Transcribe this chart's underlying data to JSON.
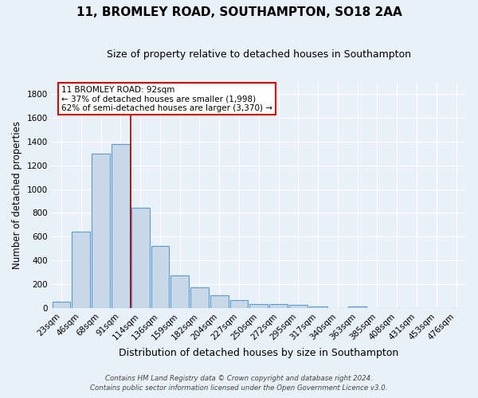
{
  "title": "11, BROMLEY ROAD, SOUTHAMPTON, SO18 2AA",
  "subtitle": "Size of property relative to detached houses in Southampton",
  "xlabel": "Distribution of detached houses by size in Southampton",
  "ylabel": "Number of detached properties",
  "footnote1": "Contains HM Land Registry data © Crown copyright and database right 2024.",
  "footnote2": "Contains public sector information licensed under the Open Government Licence v3.0.",
  "bar_labels": [
    "23sqm",
    "46sqm",
    "68sqm",
    "91sqm",
    "114sqm",
    "136sqm",
    "159sqm",
    "182sqm",
    "204sqm",
    "227sqm",
    "250sqm",
    "272sqm",
    "295sqm",
    "317sqm",
    "340sqm",
    "363sqm",
    "385sqm",
    "408sqm",
    "431sqm",
    "453sqm",
    "476sqm"
  ],
  "bar_values": [
    55,
    645,
    1300,
    1375,
    845,
    525,
    275,
    175,
    105,
    65,
    35,
    35,
    25,
    15,
    0,
    10,
    0,
    0,
    0,
    0,
    0
  ],
  "bar_color": "#c8d8e8",
  "bar_edge_color": "#5b9bd5",
  "bg_color": "#e8f0f8",
  "grid_color": "#ffffff",
  "vline_x": 3.5,
  "vline_color": "#990000",
  "annotation_text": "11 BROMLEY ROAD: 92sqm\n← 37% of detached houses are smaller (1,998)\n62% of semi-detached houses are larger (3,370) →",
  "annotation_box_color": "#ffffff",
  "annotation_box_edge": "#cc0000",
  "ylim": [
    0,
    1900
  ],
  "yticks": [
    0,
    200,
    400,
    600,
    800,
    1000,
    1200,
    1400,
    1600,
    1800
  ],
  "title_fontsize": 11,
  "subtitle_fontsize": 9,
  "tick_fontsize": 7.5,
  "ylabel_fontsize": 8.5,
  "xlabel_fontsize": 9
}
